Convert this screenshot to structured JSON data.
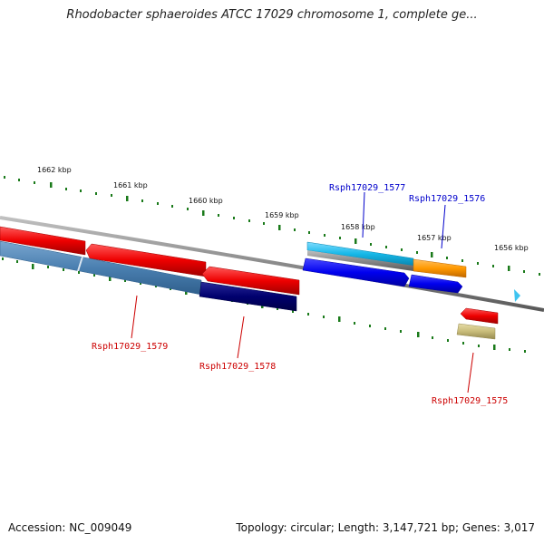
{
  "title": "Rhodobacter sphaeroides ATCC 17029 chromosome 1, complete ge...",
  "footer": {
    "accession": "Accession: NC_009049",
    "summary": "Topology: circular; Length: 3,147,721 bp; Genes: 3,017"
  },
  "ruler_labels": [
    "1662 kbp",
    "1661 kbp",
    "1660 kbp",
    "1659 kbp",
    "1658 kbp",
    "1657 kbp",
    "1656 kbp"
  ],
  "gene_labels": [
    {
      "text": "Rsph17029_1577",
      "color": "#0000cc"
    },
    {
      "text": "Rsph17029_1576",
      "color": "#0000cc"
    },
    {
      "text": "Rsph17029_1579",
      "color": "#cc0000"
    },
    {
      "text": "Rsph17029_1578",
      "color": "#cc0000"
    },
    {
      "text": "Rsph17029_1575",
      "color": "#cc0000"
    }
  ],
  "colors": {
    "backbone": "#888888",
    "tick": "#1a7a1a",
    "forward_cds": "#0000ee",
    "reverse_cds": "#ee0000",
    "steel_blue": "#4a7fb0",
    "navy": "#00006e",
    "cyan": "#16b8e8",
    "orange": "#ff9900",
    "khaki": "#c8bc7a"
  }
}
